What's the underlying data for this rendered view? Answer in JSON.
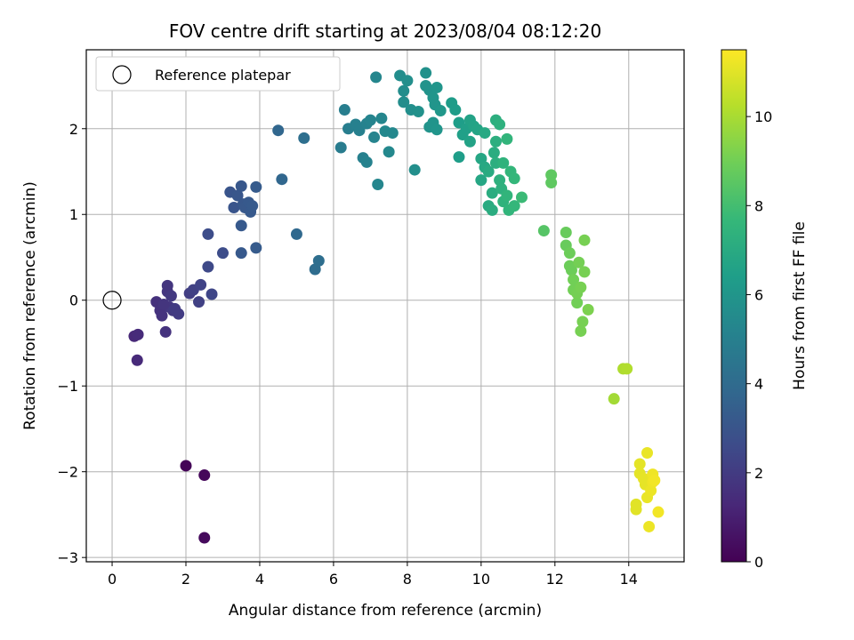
{
  "chart_data": {
    "type": "scatter",
    "title": "FOV centre drift starting at 2023/08/04 08:12:20",
    "xlabel": "Angular distance from reference (arcmin)",
    "ylabel": "Rotation from reference (arcmin)",
    "xlim": [
      -0.7,
      15.5
    ],
    "ylim": [
      -3.05,
      2.92
    ],
    "xticks": [
      0,
      2,
      4,
      6,
      8,
      10,
      12,
      14
    ],
    "xtick_labels": [
      "0",
      "2",
      "4",
      "6",
      "8",
      "10",
      "12",
      "14"
    ],
    "yticks": [
      -3,
      -2,
      -1,
      0,
      1,
      2
    ],
    "ytick_labels": [
      "−3",
      "−2",
      "−1",
      "0",
      "1",
      "2"
    ],
    "grid": true,
    "legend": {
      "position": "top-left",
      "entries": [
        "Reference platepar"
      ]
    },
    "reference_point": {
      "x": 0,
      "y": 0,
      "marker": "open-circle"
    },
    "colorbar": {
      "label": "Hours from first FF file",
      "range": [
        0,
        11.5
      ],
      "ticks": [
        0,
        2,
        4,
        6,
        8,
        10
      ],
      "tick_labels": [
        "0",
        "2",
        "4",
        "6",
        "8",
        "10"
      ],
      "colormap": "viridis"
    },
    "points": [
      [
        2.0,
        -1.93,
        0.1
      ],
      [
        2.5,
        -2.04,
        0.2
      ],
      [
        2.5,
        -2.77,
        0.3
      ],
      [
        0.6,
        -0.42,
        1.3
      ],
      [
        0.7,
        -0.4,
        1.4
      ],
      [
        0.68,
        -0.7,
        1.35
      ],
      [
        1.2,
        -0.02,
        1.6
      ],
      [
        1.3,
        -0.12,
        1.65
      ],
      [
        1.35,
        -0.18,
        1.7
      ],
      [
        1.45,
        -0.37,
        1.7
      ],
      [
        1.5,
        0.1,
        1.8
      ],
      [
        1.5,
        0.17,
        1.8
      ],
      [
        1.55,
        -0.08,
        1.85
      ],
      [
        1.6,
        0.05,
        1.9
      ],
      [
        1.65,
        -0.12,
        1.9
      ],
      [
        1.7,
        -0.1,
        2.0
      ],
      [
        1.8,
        -0.16,
        2.0
      ],
      [
        1.4,
        -0.05,
        1.75
      ],
      [
        2.1,
        0.08,
        2.1
      ],
      [
        2.2,
        0.12,
        2.2
      ],
      [
        2.35,
        -0.02,
        2.2
      ],
      [
        2.4,
        0.18,
        2.3
      ],
      [
        2.6,
        0.39,
        2.5
      ],
      [
        2.7,
        0.07,
        2.4
      ],
      [
        2.6,
        0.77,
        2.7
      ],
      [
        3.0,
        0.55,
        2.7
      ],
      [
        3.2,
        1.26,
        3.0
      ],
      [
        3.3,
        1.08,
        3.0
      ],
      [
        3.4,
        1.22,
        3.05
      ],
      [
        3.5,
        1.33,
        3.1
      ],
      [
        3.55,
        1.12,
        3.1
      ],
      [
        3.6,
        1.08,
        3.15
      ],
      [
        3.7,
        1.14,
        3.2
      ],
      [
        3.75,
        1.03,
        3.2
      ],
      [
        3.8,
        1.1,
        3.25
      ],
      [
        3.9,
        1.32,
        3.3
      ],
      [
        3.5,
        0.87,
        3.2
      ],
      [
        3.5,
        0.55,
        3.2
      ],
      [
        3.9,
        0.61,
        3.3
      ],
      [
        4.5,
        1.98,
        3.8
      ],
      [
        4.6,
        1.41,
        3.8
      ],
      [
        5.0,
        0.77,
        3.9
      ],
      [
        5.2,
        1.89,
        4.2
      ],
      [
        5.5,
        0.36,
        4.1
      ],
      [
        5.6,
        0.46,
        4.15
      ],
      [
        6.2,
        1.78,
        4.8
      ],
      [
        6.3,
        2.22,
        4.9
      ],
      [
        6.4,
        2.0,
        4.9
      ],
      [
        6.6,
        2.05,
        5.0
      ],
      [
        6.7,
        1.98,
        5.0
      ],
      [
        6.8,
        1.66,
        5.0
      ],
      [
        6.9,
        1.61,
        5.1
      ],
      [
        6.9,
        2.06,
        5.1
      ],
      [
        7.0,
        2.1,
        5.2
      ],
      [
        7.1,
        1.9,
        5.2
      ],
      [
        7.15,
        2.6,
        5.3
      ],
      [
        7.2,
        1.35,
        5.3
      ],
      [
        7.3,
        2.12,
        5.3
      ],
      [
        7.4,
        1.97,
        5.4
      ],
      [
        7.5,
        1.73,
        5.4
      ],
      [
        7.6,
        1.95,
        5.4
      ],
      [
        7.8,
        2.62,
        5.6
      ],
      [
        7.9,
        2.44,
        5.6
      ],
      [
        7.9,
        2.31,
        5.6
      ],
      [
        8.0,
        2.56,
        5.7
      ],
      [
        8.1,
        2.22,
        5.7
      ],
      [
        8.2,
        1.52,
        5.7
      ],
      [
        8.3,
        2.2,
        5.8
      ],
      [
        8.5,
        2.65,
        5.8
      ],
      [
        8.5,
        2.5,
        5.9
      ],
      [
        8.6,
        2.45,
        5.9
      ],
      [
        8.6,
        2.02,
        5.9
      ],
      [
        8.7,
        2.07,
        5.95
      ],
      [
        8.7,
        2.36,
        6.0
      ],
      [
        8.75,
        2.28,
        6.0
      ],
      [
        8.8,
        2.48,
        6.0
      ],
      [
        8.8,
        1.99,
        6.0
      ],
      [
        8.9,
        2.21,
        6.05
      ],
      [
        9.2,
        2.3,
        6.3
      ],
      [
        9.3,
        2.22,
        6.3
      ],
      [
        9.4,
        1.67,
        6.4
      ],
      [
        9.4,
        2.07,
        6.4
      ],
      [
        9.5,
        1.93,
        6.5
      ],
      [
        9.6,
        2.0,
        6.5
      ],
      [
        9.7,
        2.1,
        6.6
      ],
      [
        9.7,
        1.85,
        6.6
      ],
      [
        9.8,
        2.03,
        6.65
      ],
      [
        9.9,
        1.99,
        6.7
      ],
      [
        10.0,
        1.65,
        6.8
      ],
      [
        10.0,
        1.4,
        6.8
      ],
      [
        10.1,
        1.95,
        6.9
      ],
      [
        10.1,
        1.55,
        6.9
      ],
      [
        10.2,
        1.5,
        7.0
      ],
      [
        10.2,
        1.1,
        7.0
      ],
      [
        10.3,
        1.05,
        7.1
      ],
      [
        10.3,
        1.25,
        7.1
      ],
      [
        10.35,
        1.72,
        7.1
      ],
      [
        10.4,
        1.85,
        7.2
      ],
      [
        10.4,
        1.6,
        7.2
      ],
      [
        10.4,
        2.1,
        7.2
      ],
      [
        10.5,
        1.4,
        7.3
      ],
      [
        10.5,
        2.05,
        7.3
      ],
      [
        10.55,
        1.3,
        7.3
      ],
      [
        10.6,
        1.15,
        7.4
      ],
      [
        10.6,
        1.6,
        7.4
      ],
      [
        10.7,
        1.88,
        7.5
      ],
      [
        10.7,
        1.22,
        7.5
      ],
      [
        10.75,
        1.05,
        7.5
      ],
      [
        10.8,
        1.5,
        7.55
      ],
      [
        10.9,
        1.42,
        7.6
      ],
      [
        10.9,
        1.1,
        7.6
      ],
      [
        11.1,
        1.2,
        7.8
      ],
      [
        11.7,
        0.81,
        8.4
      ],
      [
        11.9,
        1.46,
        8.6
      ],
      [
        11.9,
        1.37,
        8.6
      ],
      [
        12.3,
        0.79,
        8.8
      ],
      [
        12.3,
        0.64,
        8.8
      ],
      [
        12.4,
        0.55,
        8.9
      ],
      [
        12.4,
        0.4,
        8.9
      ],
      [
        12.45,
        0.35,
        8.9
      ],
      [
        12.5,
        0.12,
        9.0
      ],
      [
        12.5,
        0.24,
        9.0
      ],
      [
        12.6,
        -0.03,
        9.0
      ],
      [
        12.6,
        0.08,
        9.05
      ],
      [
        12.65,
        0.44,
        9.05
      ],
      [
        12.7,
        -0.36,
        9.1
      ],
      [
        12.7,
        0.15,
        9.1
      ],
      [
        12.75,
        -0.25,
        9.1
      ],
      [
        12.8,
        0.7,
        9.1
      ],
      [
        12.8,
        0.33,
        9.1
      ],
      [
        12.9,
        -0.11,
        9.2
      ],
      [
        13.6,
        -1.15,
        9.9
      ],
      [
        13.85,
        -0.8,
        10.1
      ],
      [
        13.95,
        -0.8,
        10.15
      ],
      [
        14.2,
        -2.38,
        11.0
      ],
      [
        14.2,
        -2.44,
        11.0
      ],
      [
        14.3,
        -1.91,
        11.05
      ],
      [
        14.3,
        -2.02,
        11.05
      ],
      [
        14.4,
        -2.08,
        11.1
      ],
      [
        14.45,
        -2.15,
        11.1
      ],
      [
        14.5,
        -1.78,
        11.15
      ],
      [
        14.5,
        -2.3,
        11.15
      ],
      [
        14.55,
        -2.64,
        11.2
      ],
      [
        14.6,
        -2.22,
        11.2
      ],
      [
        14.65,
        -2.12,
        11.25
      ],
      [
        14.65,
        -2.03,
        11.25
      ],
      [
        14.7,
        -2.1,
        11.3
      ],
      [
        14.8,
        -2.47,
        11.3
      ]
    ]
  }
}
